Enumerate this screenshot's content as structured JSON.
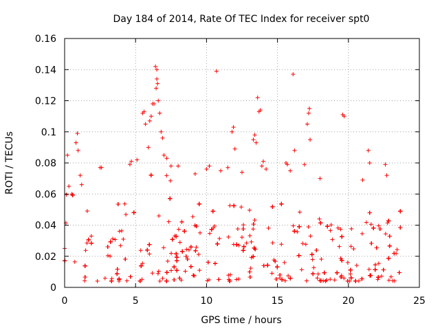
{
  "chart_data": {
    "type": "scatter",
    "title": "Day 184 of 2014, Rate Of TEC Index for receiver spt0",
    "xlabel": "GPS time / hours",
    "ylabel": "ROTI / TECUs",
    "xlim": [
      0,
      25
    ],
    "ylim": [
      0,
      0.16
    ],
    "xticks": [
      0,
      5,
      10,
      15,
      20,
      25
    ],
    "yticks": [
      0,
      0.02,
      0.04,
      0.06,
      0.08,
      0.1,
      0.12,
      0.14,
      0.16
    ],
    "xtick_labels": [
      "0",
      "5",
      "10",
      "15",
      "20",
      "25"
    ],
    "ytick_labels": [
      "0",
      "0.02",
      "0.04",
      "0.06",
      "0.08",
      "0.1",
      "0.12",
      "0.14",
      "0.16"
    ],
    "grid": true,
    "marker": "+",
    "color": "#ff0000",
    "data_x_range": [
      0,
      23.8
    ],
    "series": [
      {
        "name": "ROTI",
        "points": [
          [
            0.2,
            0.085
          ],
          [
            0.3,
            0.065
          ],
          [
            0.5,
            0.06
          ],
          [
            0.8,
            0.093
          ],
          [
            0.9,
            0.099
          ],
          [
            0.95,
            0.088
          ],
          [
            1.1,
            0.072
          ],
          [
            1.2,
            0.066
          ],
          [
            2.5,
            0.077
          ],
          [
            2.6,
            0.077
          ],
          [
            4.6,
            0.079
          ],
          [
            4.7,
            0.081
          ],
          [
            5.1,
            0.082
          ],
          [
            5.5,
            0.112
          ],
          [
            5.6,
            0.113
          ],
          [
            5.7,
            0.105
          ],
          [
            5.9,
            0.09
          ],
          [
            6.0,
            0.107
          ],
          [
            6.1,
            0.11
          ],
          [
            6.2,
            0.118
          ],
          [
            6.3,
            0.118
          ],
          [
            6.4,
            0.142
          ],
          [
            6.5,
            0.14
          ],
          [
            6.5,
            0.134
          ],
          [
            6.45,
            0.128
          ],
          [
            6.55,
            0.131
          ],
          [
            6.6,
            0.12
          ],
          [
            6.7,
            0.112
          ],
          [
            6.8,
            0.1
          ],
          [
            6.9,
            0.096
          ],
          [
            7.0,
            0.085
          ],
          [
            7.2,
            0.083
          ],
          [
            7.5,
            0.078
          ],
          [
            8.0,
            0.078
          ],
          [
            9.2,
            0.073
          ],
          [
            10.0,
            0.076
          ],
          [
            10.2,
            0.078
          ],
          [
            10.7,
            0.139
          ],
          [
            11.0,
            0.075
          ],
          [
            11.5,
            0.077
          ],
          [
            11.8,
            0.1
          ],
          [
            11.9,
            0.103
          ],
          [
            12.0,
            0.089
          ],
          [
            12.5,
            0.074
          ],
          [
            13.3,
            0.095
          ],
          [
            13.4,
            0.098
          ],
          [
            13.5,
            0.093
          ],
          [
            13.6,
            0.122
          ],
          [
            13.7,
            0.113
          ],
          [
            13.8,
            0.114
          ],
          [
            13.9,
            0.078
          ],
          [
            14.0,
            0.081
          ],
          [
            14.2,
            0.076
          ],
          [
            15.6,
            0.08
          ],
          [
            15.7,
            0.079
          ],
          [
            15.9,
            0.075
          ],
          [
            16.1,
            0.137
          ],
          [
            16.2,
            0.088
          ],
          [
            16.9,
            0.079
          ],
          [
            17.1,
            0.105
          ],
          [
            17.2,
            0.112
          ],
          [
            17.25,
            0.115
          ],
          [
            17.3,
            0.095
          ],
          [
            18.0,
            0.07
          ],
          [
            19.6,
            0.111
          ],
          [
            19.7,
            0.11
          ],
          [
            21.0,
            0.069
          ],
          [
            21.4,
            0.088
          ],
          [
            21.5,
            0.08
          ],
          [
            22.6,
            0.079
          ],
          [
            22.7,
            0.072
          ]
        ]
      }
    ]
  }
}
